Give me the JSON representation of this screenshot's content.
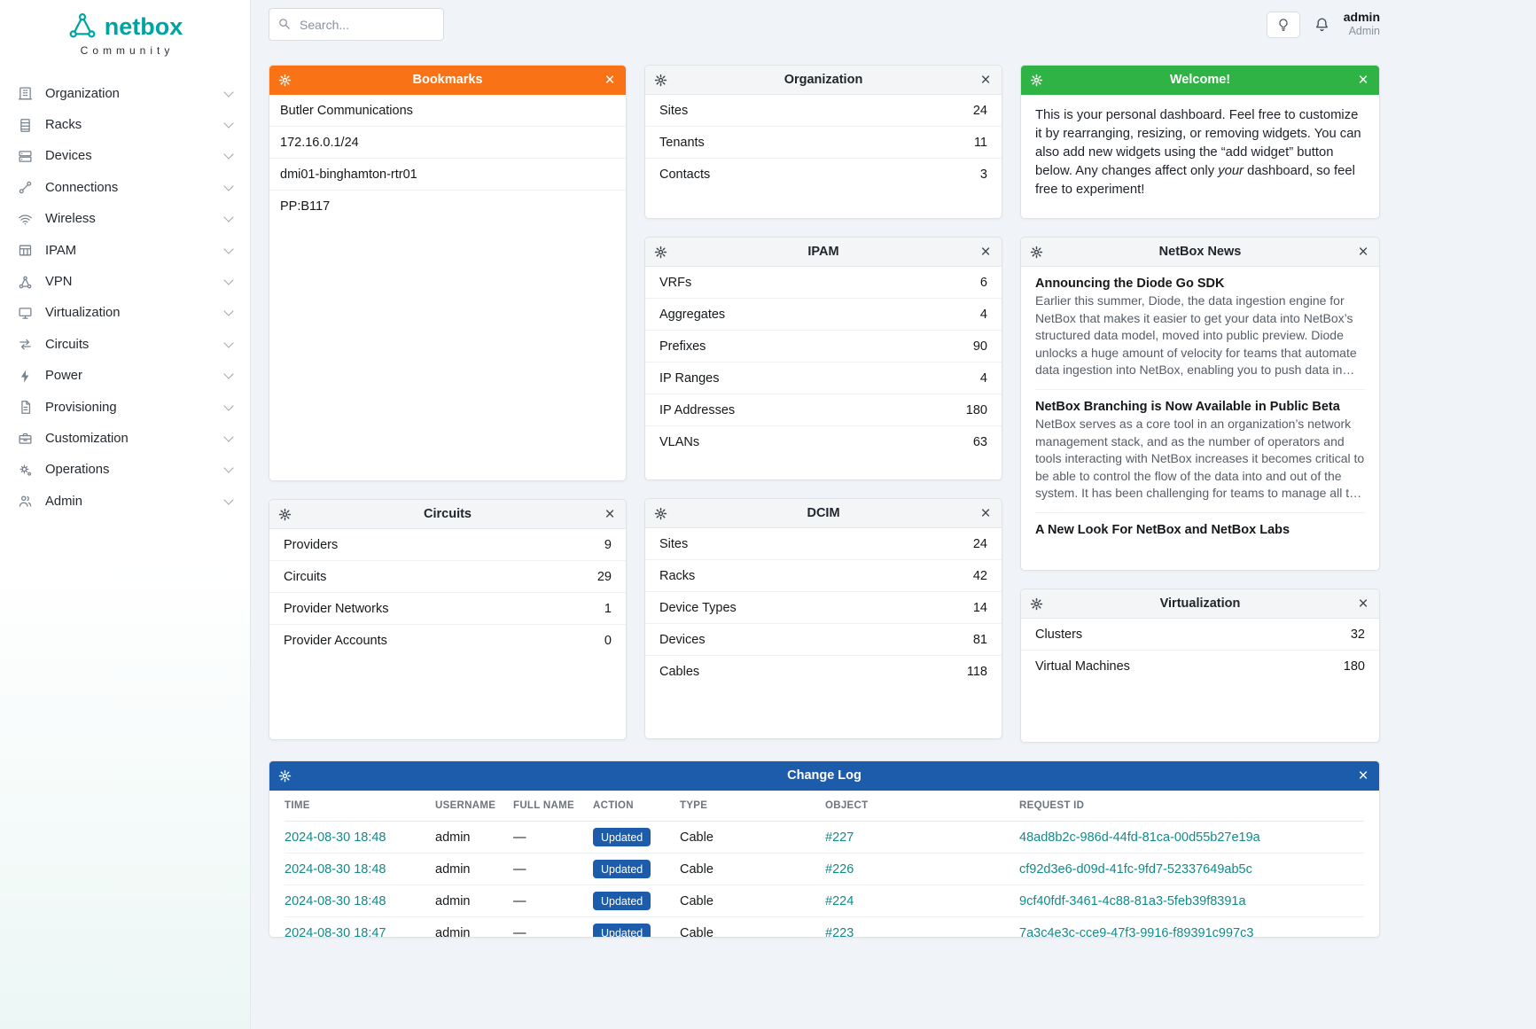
{
  "colors": {
    "brand_teal": "#00a3a3",
    "link_teal": "#0f8b8b",
    "bookmarks_header": "#f97316",
    "welcome_header": "#2fb344",
    "changelog_header": "#1d5cab",
    "badge_updated": "#1d5cab",
    "widget_header_gray": "#f3f5f7"
  },
  "brand": {
    "name": "netbox",
    "subtitle": "Community"
  },
  "topbar": {
    "search_placeholder": "Search...",
    "user_name": "admin",
    "user_role": "Admin"
  },
  "sidebar": {
    "items": [
      {
        "label": "Organization"
      },
      {
        "label": "Racks"
      },
      {
        "label": "Devices"
      },
      {
        "label": "Connections"
      },
      {
        "label": "Wireless"
      },
      {
        "label": "IPAM"
      },
      {
        "label": "VPN"
      },
      {
        "label": "Virtualization"
      },
      {
        "label": "Circuits"
      },
      {
        "label": "Power"
      },
      {
        "label": "Provisioning"
      },
      {
        "label": "Customization"
      },
      {
        "label": "Operations"
      },
      {
        "label": "Admin"
      }
    ]
  },
  "widgets": {
    "bookmarks": {
      "title": "Bookmarks",
      "items": [
        "Butler Communications",
        "172.16.0.1/24",
        "dmi01-binghamton-rtr01",
        "PP:B117"
      ]
    },
    "organization": {
      "title": "Organization",
      "rows": [
        {
          "label": "Sites",
          "value": "24"
        },
        {
          "label": "Tenants",
          "value": "11"
        },
        {
          "label": "Contacts",
          "value": "3"
        }
      ]
    },
    "welcome": {
      "title": "Welcome!",
      "text_1": "This is your personal dashboard. Feel free to customize it by rearranging, resizing, or removing widgets. You can also add new widgets using the “add widget” button below. Any changes affect only ",
      "text_italic": "your",
      "text_2": " dashboard, so feel free to experiment!"
    },
    "ipam": {
      "title": "IPAM",
      "rows": [
        {
          "label": "VRFs",
          "value": "6"
        },
        {
          "label": "Aggregates",
          "value": "4"
        },
        {
          "label": "Prefixes",
          "value": "90"
        },
        {
          "label": "IP Ranges",
          "value": "4"
        },
        {
          "label": "IP Addresses",
          "value": "180"
        },
        {
          "label": "VLANs",
          "value": "63"
        }
      ]
    },
    "news": {
      "title": "NetBox News",
      "items": [
        {
          "headline": "Announcing the Diode Go SDK",
          "body": "Earlier this summer, Diode, the data ingestion engine for NetBox that makes it easier to get your data into NetBox’s structured data model, moved into public preview. Diode unlocks a huge amount of velocity for teams that automate data ingestion into NetBox, enabling you to push data in without worrying too much about order of..."
        },
        {
          "headline": "NetBox Branching is Now Available in Public Beta",
          "body": "NetBox serves as a core tool in an organization’s network management stack, and as the number of operators and tools interacting with NetBox increases it becomes critical to be able to control the flow of the data into and out of the system. It has been challenging for teams to manage all this change in…"
        },
        {
          "headline": "A New Look For NetBox and NetBox Labs",
          "body": ""
        }
      ]
    },
    "circuits": {
      "title": "Circuits",
      "rows": [
        {
          "label": "Providers",
          "value": "9"
        },
        {
          "label": "Circuits",
          "value": "29"
        },
        {
          "label": "Provider Networks",
          "value": "1"
        },
        {
          "label": "Provider Accounts",
          "value": "0"
        }
      ]
    },
    "dcim": {
      "title": "DCIM",
      "rows": [
        {
          "label": "Sites",
          "value": "24"
        },
        {
          "label": "Racks",
          "value": "42"
        },
        {
          "label": "Device Types",
          "value": "14"
        },
        {
          "label": "Devices",
          "value": "81"
        },
        {
          "label": "Cables",
          "value": "118"
        }
      ]
    },
    "virtualization": {
      "title": "Virtualization",
      "rows": [
        {
          "label": "Clusters",
          "value": "32"
        },
        {
          "label": "Virtual Machines",
          "value": "180"
        }
      ]
    }
  },
  "changelog": {
    "title": "Change Log",
    "columns": [
      "TIME",
      "USERNAME",
      "FULL NAME",
      "ACTION",
      "TYPE",
      "OBJECT",
      "REQUEST ID"
    ],
    "rows": [
      {
        "time": "2024-08-30 18:48",
        "username": "admin",
        "full_name": "—",
        "action": "Updated",
        "type": "Cable",
        "object": "#227",
        "request_id": "48ad8b2c-986d-44fd-81ca-00d55b27e19a"
      },
      {
        "time": "2024-08-30 18:48",
        "username": "admin",
        "full_name": "—",
        "action": "Updated",
        "type": "Cable",
        "object": "#226",
        "request_id": "cf92d3e6-d09d-41fc-9fd7-52337649ab5c"
      },
      {
        "time": "2024-08-30 18:48",
        "username": "admin",
        "full_name": "—",
        "action": "Updated",
        "type": "Cable",
        "object": "#224",
        "request_id": "9cf40fdf-3461-4c88-81a3-5feb39f8391a"
      },
      {
        "time": "2024-08-30 18:47",
        "username": "admin",
        "full_name": "—",
        "action": "Updated",
        "type": "Cable",
        "object": "#223",
        "request_id": "7a3c4e3c-cce9-47f3-9916-f89391c997c3"
      }
    ]
  }
}
